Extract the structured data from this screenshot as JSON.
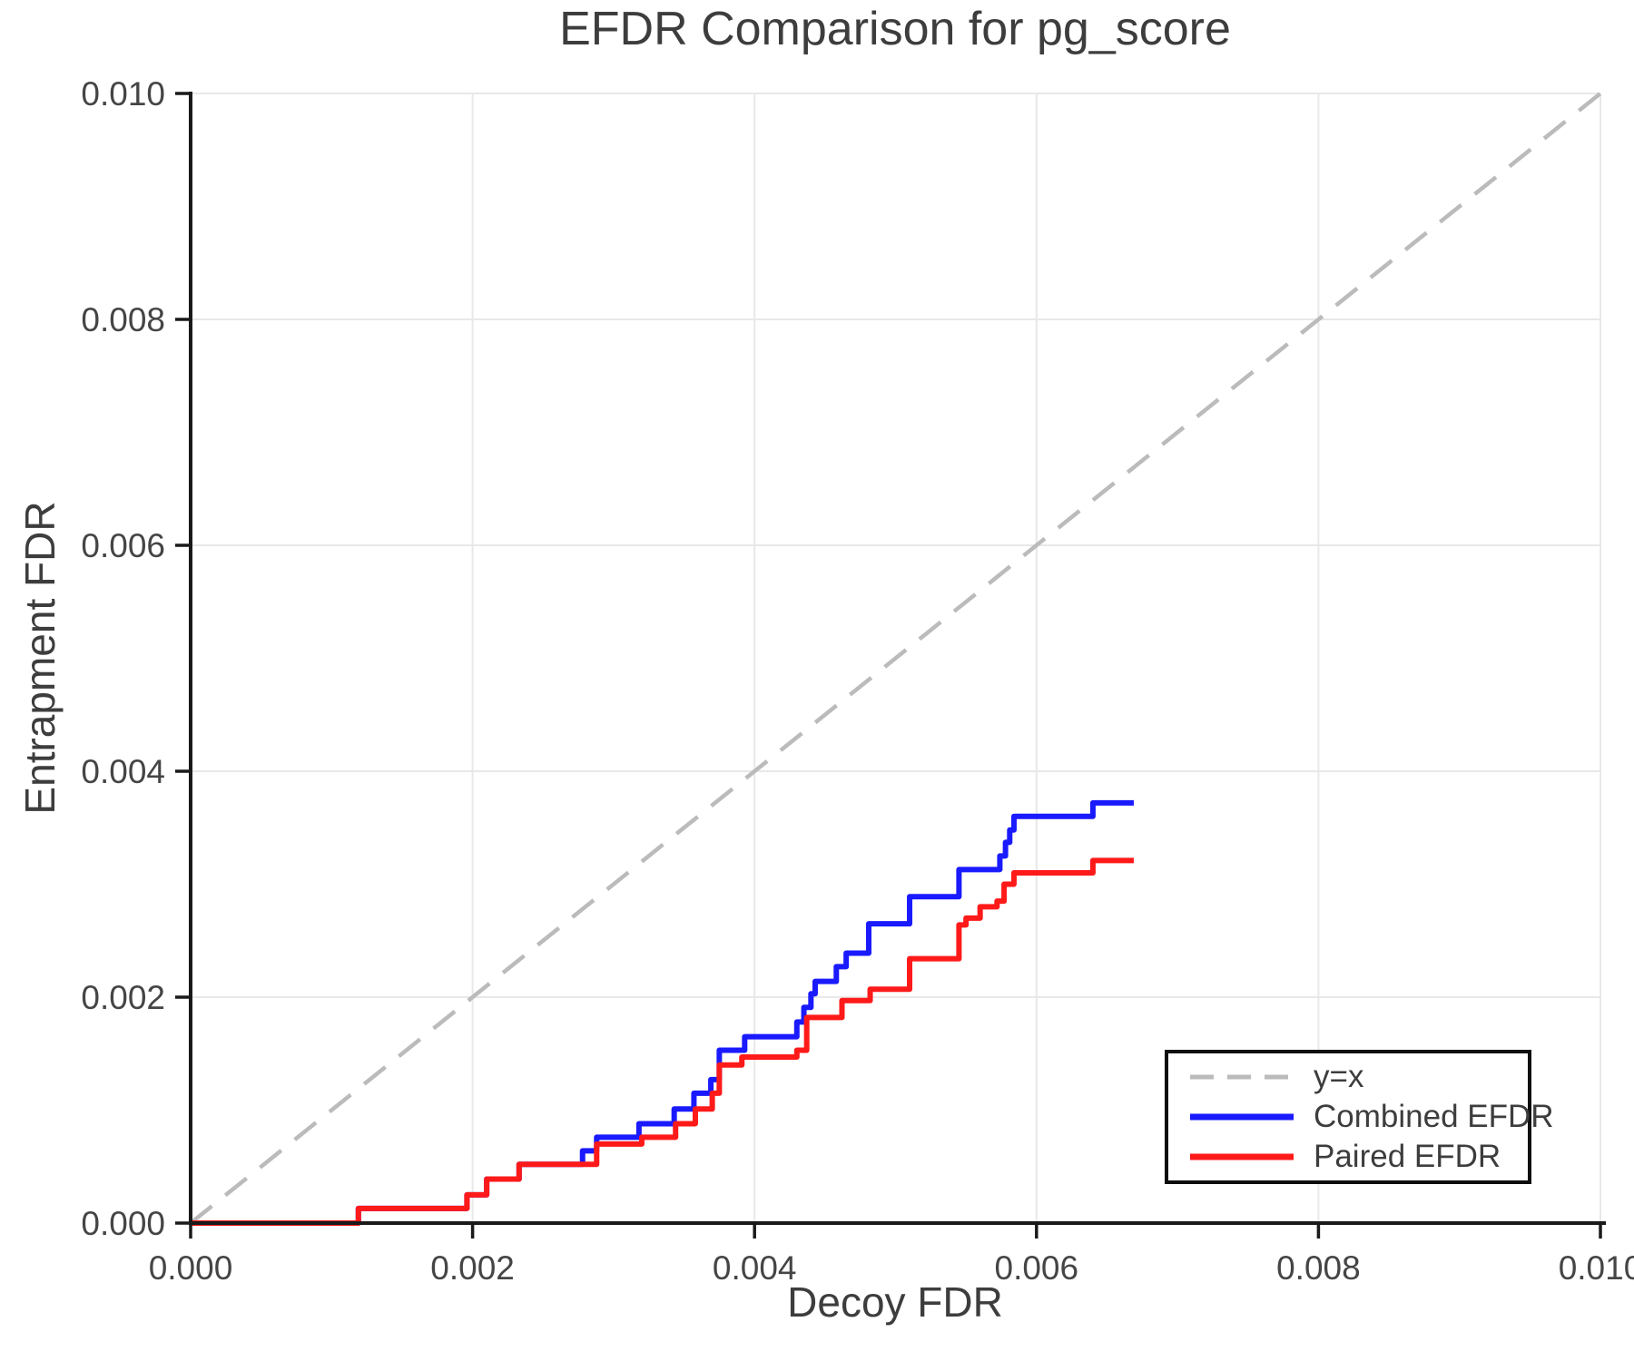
{
  "colors": {
    "background": "#ffffff",
    "grid": "#e8e8e8",
    "axis": "#1a1a1a",
    "tick_text": "#454545",
    "title_text": "#3d3d3d",
    "legend_border": "#0e0e0e"
  },
  "chart_data": {
    "type": "line",
    "title": "EFDR Comparison for pg_score",
    "xlabel": "Decoy FDR",
    "ylabel": "Entrapment FDR",
    "xlim": [
      0.0,
      0.01
    ],
    "ylim": [
      0.0,
      0.01
    ],
    "xticks": [
      0.0,
      0.002,
      0.004,
      0.006,
      0.008,
      0.01
    ],
    "yticks": [
      0.0,
      0.002,
      0.004,
      0.006,
      0.008,
      0.01
    ],
    "tick_decimals": 3,
    "grid": true,
    "reference_line": {
      "label": "y=x",
      "style": "dashed",
      "color": "#bbbbbb",
      "from": [
        0.0,
        0.0
      ],
      "to": [
        0.01,
        0.01
      ]
    },
    "legend": {
      "position": "lower-right",
      "entries": [
        {
          "label": "y=x",
          "color": "#bbbbbb",
          "style": "dashed"
        },
        {
          "label": "Combined EFDR",
          "color": "#1a1aff",
          "style": "solid"
        },
        {
          "label": "Paired EFDR",
          "color": "#ff1a1a",
          "style": "solid"
        }
      ]
    },
    "series": [
      {
        "name": "Combined EFDR",
        "color": "#1a1aff",
        "step": "post",
        "points": [
          [
            0.0,
            0.0
          ],
          [
            0.00119,
            0.00013
          ],
          [
            0.00196,
            0.00025
          ],
          [
            0.0021,
            0.00039
          ],
          [
            0.00233,
            0.00052
          ],
          [
            0.00278,
            0.00064
          ],
          [
            0.00288,
            0.00076
          ],
          [
            0.00318,
            0.00088
          ],
          [
            0.00343,
            0.00101
          ],
          [
            0.00357,
            0.00115
          ],
          [
            0.00369,
            0.00127
          ],
          [
            0.00375,
            0.00153
          ],
          [
            0.00393,
            0.00165
          ],
          [
            0.0043,
            0.00178
          ],
          [
            0.00435,
            0.00191
          ],
          [
            0.0044,
            0.00203
          ],
          [
            0.00443,
            0.00214
          ],
          [
            0.00458,
            0.00227
          ],
          [
            0.00465,
            0.00239
          ],
          [
            0.00481,
            0.00265
          ],
          [
            0.0051,
            0.00289
          ],
          [
            0.00545,
            0.00313
          ],
          [
            0.00574,
            0.00325
          ],
          [
            0.00578,
            0.00337
          ],
          [
            0.00581,
            0.00348
          ],
          [
            0.00584,
            0.0036
          ],
          [
            0.0064,
            0.00372
          ],
          [
            0.00669,
            0.00372
          ]
        ]
      },
      {
        "name": "Paired EFDR",
        "color": "#ff1a1a",
        "step": "post",
        "points": [
          [
            0.0,
            0.0
          ],
          [
            0.00119,
            0.00013
          ],
          [
            0.00196,
            0.00025
          ],
          [
            0.0021,
            0.00039
          ],
          [
            0.00233,
            0.00052
          ],
          [
            0.00288,
            0.0007
          ],
          [
            0.0032,
            0.00076
          ],
          [
            0.00344,
            0.00088
          ],
          [
            0.00358,
            0.00101
          ],
          [
            0.0037,
            0.00115
          ],
          [
            0.00375,
            0.0014
          ],
          [
            0.00391,
            0.00147
          ],
          [
            0.0043,
            0.00153
          ],
          [
            0.00437,
            0.00182
          ],
          [
            0.00462,
            0.00197
          ],
          [
            0.00482,
            0.00207
          ],
          [
            0.0051,
            0.00234
          ],
          [
            0.00545,
            0.00264
          ],
          [
            0.0055,
            0.0027
          ],
          [
            0.0056,
            0.0028
          ],
          [
            0.00572,
            0.00285
          ],
          [
            0.00577,
            0.003
          ],
          [
            0.00584,
            0.0031
          ],
          [
            0.0064,
            0.00321
          ],
          [
            0.00669,
            0.00321
          ]
        ]
      }
    ]
  }
}
